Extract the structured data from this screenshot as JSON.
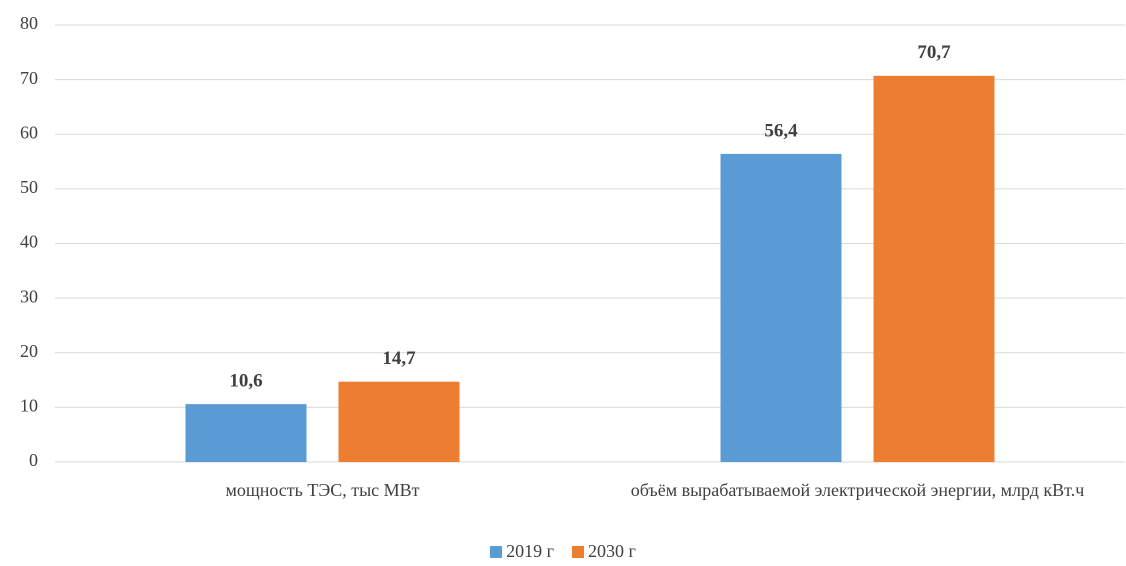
{
  "chart_data": {
    "type": "bar",
    "categories": [
      "мощность ТЭС, тыс МВт",
      "объём вырабатываемой электрической энергии, млрд кВт.ч"
    ],
    "series": [
      {
        "name": "2019 г",
        "color": "#5b9bd5",
        "values": [
          10.6,
          56.4
        ],
        "value_labels": [
          "10,6",
          "56,4"
        ]
      },
      {
        "name": "2030 г",
        "color": "#ed7d31",
        "values": [
          14.7,
          70.7
        ],
        "value_labels": [
          "14,7",
          "70,7"
        ]
      }
    ],
    "ylim": [
      0,
      80
    ],
    "yticks": [
      0,
      10,
      20,
      30,
      40,
      50,
      60,
      70,
      80
    ],
    "grid": true,
    "legend": "bottom"
  }
}
